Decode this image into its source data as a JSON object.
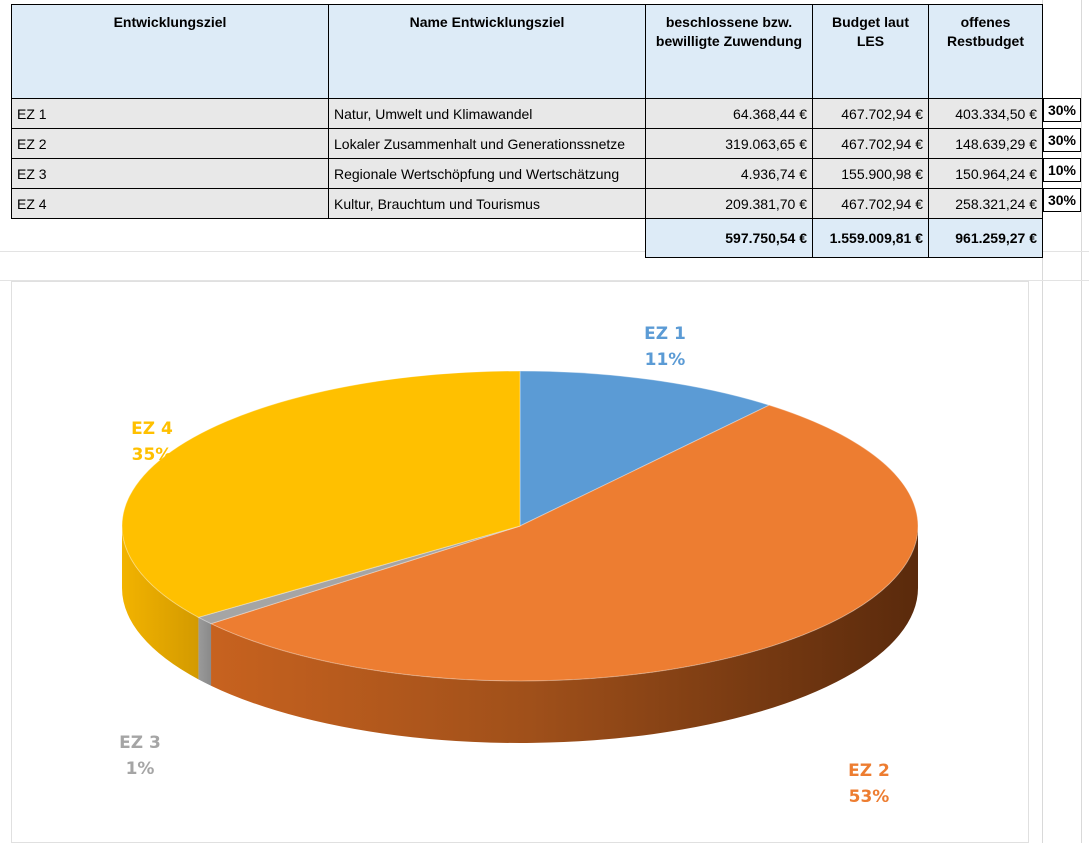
{
  "table": {
    "headers": [
      "Entwicklungsziel",
      "Name Entwicklungsziel",
      "beschlossene bzw. bewilligte Zuwendung",
      "Budget laut LES",
      "offenes Restbudget"
    ],
    "rows": [
      {
        "ez": "EZ 1",
        "name": "Natur, Umwelt und Klimawandel",
        "zuwendung": "64.368,44 €",
        "budget": "467.702,94 €",
        "rest": "403.334,50 €",
        "pct": "30%"
      },
      {
        "ez": "EZ 2",
        "name": "Lokaler Zusammenhalt und Generationssnetze",
        "zuwendung": "319.063,65 €",
        "budget": "467.702,94 €",
        "rest": "148.639,29 €",
        "pct": "30%"
      },
      {
        "ez": "EZ 3",
        "name": "Regionale Wertschöpfung und Wertschätzung",
        "zuwendung": "4.936,74 €",
        "budget": "155.900,98 €",
        "rest": "150.964,24 €",
        "pct": "10%"
      },
      {
        "ez": "EZ 4",
        "name": "Kultur, Brauchtum und Tourismus",
        "zuwendung": "209.381,70 €",
        "budget": "467.702,94 €",
        "rest": "258.321,24 €",
        "pct": "30%"
      }
    ],
    "totals": {
      "zuwendung": "597.750,54 €",
      "budget": "1.559.009,81 €",
      "rest": "961.259,27 €"
    }
  },
  "chart_data": {
    "type": "pie",
    "categories": [
      "EZ 1",
      "EZ 2",
      "EZ 3",
      "EZ 4"
    ],
    "values": [
      64368.44,
      319063.65,
      4936.74,
      209381.7
    ],
    "labels": [
      "11%",
      "53%",
      "1%",
      "35%"
    ],
    "colors": [
      "#5b9bd5",
      "#ed7d31",
      "#a5a5a5",
      "#ffc000"
    ],
    "title": "",
    "style": "3d"
  }
}
